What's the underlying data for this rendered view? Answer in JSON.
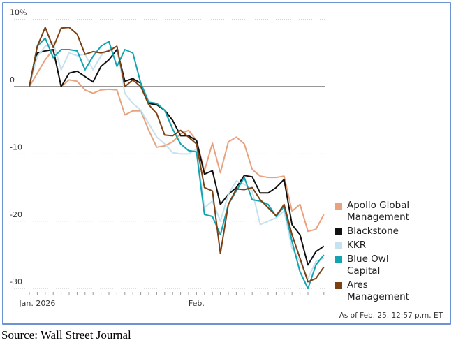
{
  "chart_data": {
    "type": "line",
    "categories": [
      null,
      "Jan. 2026",
      null,
      null,
      null,
      null,
      null,
      null,
      null,
      null,
      null,
      null,
      null,
      null,
      null,
      null,
      null,
      null,
      null,
      null,
      null,
      "Feb.",
      null,
      null,
      null,
      null,
      null,
      null,
      null,
      null,
      null,
      null,
      null,
      null,
      null,
      null,
      null,
      null
    ],
    "series": [
      {
        "name": "Apollo Global Management",
        "color": "#e9a27e",
        "values": [
          0,
          2,
          4,
          5.5,
          0,
          1,
          0.8,
          -0.5,
          -1,
          -0.5,
          -0.4,
          -0.5,
          -4.2,
          -3.6,
          -3.6,
          -6.5,
          -9,
          -8.8,
          -8.2,
          -7,
          -6.5,
          -8,
          -12.5,
          -8.4,
          -12.8,
          -8.2,
          -7.5,
          -8.5,
          -12.3,
          -13.3,
          -13.5,
          -13.5,
          -13.3,
          -18.5,
          -17.5,
          -21.5,
          -21.2,
          -19
        ]
      },
      {
        "name": "Blackstone",
        "color": "#111111",
        "values": [
          0,
          5,
          5.3,
          5.5,
          0,
          2,
          2.3,
          1.5,
          0.7,
          3,
          4,
          5.5,
          0.8,
          1.2,
          0.5,
          -2.5,
          -2.7,
          -3.5,
          -5,
          -7.3,
          -7.3,
          -8,
          -13,
          -12.5,
          -17.5,
          -16,
          -15,
          -13.2,
          -13.4,
          -15.8,
          -15.8,
          -15,
          -13.8,
          -20.5,
          -22,
          -26.5,
          -24.5,
          -23.7
        ]
      },
      {
        "name": "KKR",
        "color": "#c5e2ee",
        "values": [
          0,
          4.5,
          6,
          6.5,
          2.5,
          5,
          4.6,
          4.8,
          2.5,
          4.6,
          5.5,
          6,
          -1,
          -2.5,
          -3.5,
          -5.5,
          -7.5,
          -8.5,
          -9.8,
          -10,
          -10,
          -9.3,
          -18,
          -17,
          -20,
          -16,
          -14,
          -14.5,
          -15.5,
          -20.5,
          -20,
          -19.5,
          -18.5,
          -24,
          -26,
          -28.5,
          -26,
          -25.5
        ]
      },
      {
        "name": "Blue Owl Capital",
        "color": "#13a4b1",
        "values": [
          0,
          6,
          7.2,
          4.3,
          5.5,
          5.5,
          5.3,
          2.5,
          4.5,
          6,
          6.7,
          3,
          5.5,
          5,
          0.5,
          -2.3,
          -2.5,
          -3.5,
          -6.3,
          -8.5,
          -9.5,
          -9.7,
          -19,
          -19.3,
          -22,
          -17.5,
          -15.5,
          -13.5,
          -16.8,
          -17,
          -17.5,
          -19.3,
          -17.8,
          -23,
          -27.5,
          -30,
          -26.5,
          -25
        ]
      },
      {
        "name": "Ares Management",
        "color": "#7b4014",
        "values": [
          0,
          6,
          8.8,
          5.8,
          8.7,
          8.8,
          7.8,
          4.8,
          5.2,
          5,
          5.3,
          6,
          0,
          1,
          0,
          -2.7,
          -4,
          -7.2,
          -7.3,
          -6.5,
          -7.5,
          -8.5,
          -15,
          -15.5,
          -24.8,
          -17.5,
          -15.2,
          -15.3,
          -15,
          -16.8,
          -18,
          -19.2,
          -17.5,
          -22,
          -25.5,
          -29,
          -28.5,
          -26.8
        ]
      }
    ],
    "ylim": [
      -30.5,
      11
    ],
    "yticks": [
      {
        "value": 10,
        "label": "10%"
      },
      0,
      -10,
      -20,
      -30
    ],
    "grid": true,
    "annotation": "As of Feb. 25, 12:57 p.m. ET",
    "source": "Source: Wall Street Journal"
  }
}
